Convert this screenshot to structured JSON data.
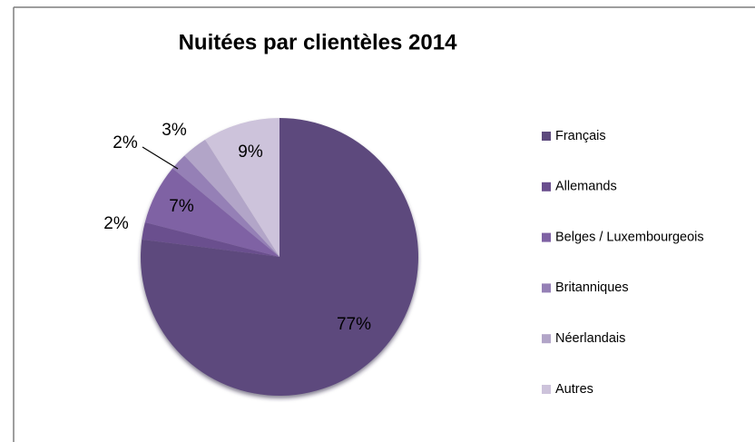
{
  "chart_data": {
    "type": "pie",
    "title": "Nuitées par clientèles 2014",
    "categories": [
      "Français",
      "Allemands",
      "Belges / Luxembourgeois",
      "Britanniques",
      "Néerlandais",
      "Autres"
    ],
    "values": [
      77,
      2,
      7,
      2,
      3,
      9
    ],
    "value_labels": [
      "77%",
      "2%",
      "7%",
      "2%",
      "3%",
      "9%"
    ],
    "colors": [
      "#5d4a7d",
      "#6a4f8e",
      "#7f62a4",
      "#9580b6",
      "#b2a5c8",
      "#cdc3db"
    ],
    "legend": "right"
  }
}
